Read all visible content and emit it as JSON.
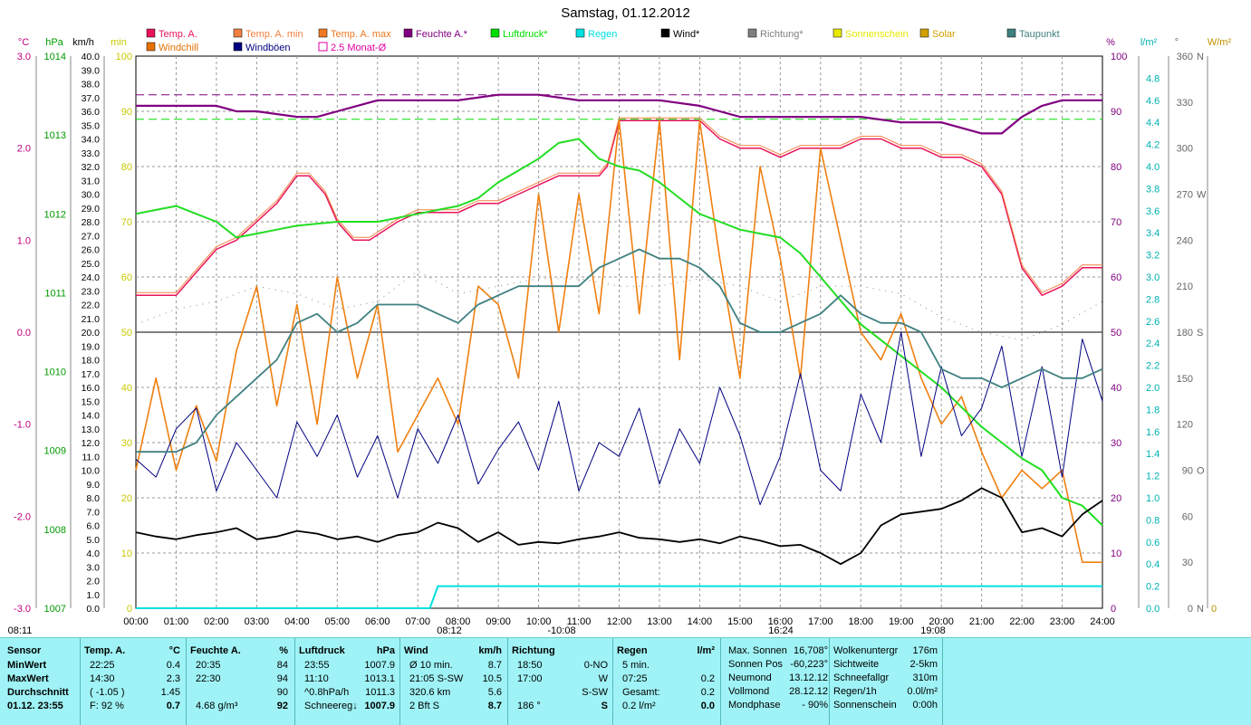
{
  "title": "Samstag, 01.12.2012",
  "legend": [
    {
      "label": "Temp. A.",
      "color": "#e8145a"
    },
    {
      "label": "Temp. A. min",
      "color": "#f08040"
    },
    {
      "label": "Temp. A. max",
      "color": "#f07820"
    },
    {
      "label": "Feuchte A.*",
      "color": "#800080"
    },
    {
      "label": "Luftdruck*",
      "color": "#00dd00"
    },
    {
      "label": "Regen",
      "color": "#00e0e0"
    },
    {
      "label": "Wind*",
      "color": "#000000"
    },
    {
      "label": "Richtung*",
      "color": "#808080"
    },
    {
      "label": "Sonnenschein",
      "color": "#e8e800"
    },
    {
      "label": "Solar",
      "color": "#d0a000"
    },
    {
      "label": "Taupunkt",
      "color": "#408080"
    },
    {
      "label": "Windchill",
      "color": "#e87000"
    },
    {
      "label": "Windböen",
      "color": "#000080"
    },
    {
      "label": "2.5 Monat-Ø",
      "color": "#e000a0"
    }
  ],
  "axes": {
    "temp_unit": "°C",
    "hpa_unit": "hPa",
    "kmh_unit": "km/h",
    "min_unit": "min",
    "pct_unit": "%",
    "lm2_unit": "l/m²",
    "deg_unit": "°",
    "wm2_unit": "W/m²",
    "temp_ticks": [
      "3.0",
      "2.0",
      "1.0",
      "0.0",
      "-1.0",
      "-2.0",
      "-3.0"
    ],
    "hpa_ticks": [
      "1014",
      "1013",
      "1012",
      "1011",
      "1010",
      "1009",
      "1008",
      "1007"
    ],
    "kmh_ticks": [
      "40.0",
      "39.0",
      "38.0",
      "37.0",
      "36.0",
      "35.0",
      "34.0",
      "33.0",
      "32.0",
      "31.0",
      "30.0",
      "29.0",
      "28.0",
      "27.0",
      "26.0",
      "25.0",
      "24.0",
      "23.0",
      "22.0",
      "21.0",
      "20.0",
      "19.0",
      "18.0",
      "17.0",
      "16.0",
      "15.0",
      "14.0",
      "13.0",
      "12.0",
      "11.0",
      "10.0",
      "9.0",
      "8.0",
      "7.0",
      "6.0",
      "5.0",
      "4.0",
      "3.0",
      "2.0",
      "1.0",
      "0.0"
    ],
    "min_ticks": [
      "100",
      "90",
      "80",
      "70",
      "60",
      "50",
      "40",
      "30",
      "20",
      "10",
      "0"
    ],
    "pct_ticks": [
      "100",
      "90",
      "80",
      "70",
      "60",
      "50",
      "40",
      "30",
      "20",
      "10",
      "0"
    ],
    "lm2_ticks": [
      "4.8",
      "4.6",
      "4.4",
      "4.2",
      "4.0",
      "3.8",
      "3.6",
      "3.4",
      "3.2",
      "3.0",
      "2.8",
      "2.6",
      "2.4",
      "2.2",
      "2.0",
      "1.8",
      "1.6",
      "1.4",
      "1.2",
      "1.0",
      "0.8",
      "0.6",
      "0.4",
      "0.2",
      "0.0"
    ],
    "deg_ticks": [
      "360",
      "330",
      "300",
      "270",
      "240",
      "210",
      "180",
      "150",
      "120",
      "90",
      "60",
      "30",
      "0"
    ],
    "dir_labels": {
      "360": "N",
      "270": "W",
      "180": "S",
      "90": "O",
      "0": "N"
    },
    "w_zero": "0",
    "hours": [
      "00:00",
      "01:00",
      "02:00",
      "03:00",
      "04:00",
      "05:00",
      "06:00",
      "07:00",
      "08:00",
      "09:00",
      "10:00",
      "11:00",
      "12:00",
      "13:00",
      "14:00",
      "15:00",
      "16:00",
      "17:00",
      "18:00",
      "19:00",
      "20:00",
      "21:00",
      "22:00",
      "23:00",
      "24:00"
    ],
    "sun_events": [
      "08:11",
      "08:12",
      "-10:08",
      "16:24",
      "19:08"
    ]
  },
  "chart_data": {
    "type": "line",
    "x_label": "",
    "xlim": [
      0,
      24
    ],
    "reference_lines": {
      "humidity_avg_pct": 93,
      "pressure_avg_hpa": 1013.2,
      "zero_temp": 0.0
    },
    "series": [
      {
        "name": "Temp. A.",
        "unit": "°C",
        "x": [
          0,
          1,
          1.2,
          2,
          2.5,
          3,
          3.5,
          4,
          4.3,
          4.7,
          5,
          5.4,
          5.8,
          6.5,
          7,
          7.5,
          8,
          8.5,
          9,
          9.5,
          10,
          10.5,
          11,
          11.5,
          11.7,
          12,
          12.5,
          13,
          13.5,
          14,
          14.5,
          15,
          15.5,
          16,
          16.5,
          17,
          17.5,
          18,
          18.5,
          19,
          19.5,
          20,
          20.5,
          21,
          21.5,
          22,
          22.5,
          23,
          23.5,
          24
        ],
        "y": [
          0.4,
          0.4,
          0.5,
          0.9,
          1.0,
          1.2,
          1.4,
          1.7,
          1.7,
          1.5,
          1.2,
          1.0,
          1.0,
          1.2,
          1.3,
          1.3,
          1.3,
          1.4,
          1.4,
          1.5,
          1.6,
          1.7,
          1.7,
          1.7,
          1.8,
          2.3,
          2.3,
          2.3,
          2.3,
          2.3,
          2.1,
          2.0,
          2.0,
          1.9,
          2.0,
          2.0,
          2.0,
          2.1,
          2.1,
          2.0,
          2.0,
          1.9,
          1.9,
          1.8,
          1.5,
          0.7,
          0.4,
          0.5,
          0.7,
          0.7
        ]
      },
      {
        "name": "Windchill",
        "unit": "°C",
        "x": [
          0,
          0.5,
          1,
          1.5,
          2,
          2.5,
          3,
          3.5,
          4,
          4.5,
          5,
          5.5,
          6,
          6.5,
          7,
          7.5,
          8,
          8.5,
          9,
          9.5,
          10,
          10.5,
          11,
          11.5,
          12,
          12.5,
          13,
          13.5,
          14,
          14.5,
          15,
          15.5,
          16,
          16.5,
          17,
          17.5,
          18,
          18.5,
          19,
          19.5,
          20,
          20.5,
          21,
          21.5,
          22,
          22.5,
          23,
          23.5,
          24
        ],
        "y": [
          -1.5,
          -0.5,
          -1.5,
          -0.8,
          -1.4,
          -0.2,
          0.5,
          -0.8,
          0.3,
          -1.0,
          0.6,
          -0.5,
          0.3,
          -1.3,
          -0.9,
          -0.5,
          -1.0,
          0.5,
          0.3,
          -0.5,
          1.5,
          0.0,
          1.5,
          0.2,
          2.3,
          0.2,
          2.3,
          -0.3,
          2.3,
          0.8,
          -0.5,
          1.8,
          0.8,
          -0.5,
          2.0,
          1.0,
          0.0,
          -0.3,
          0.2,
          -0.5,
          -1.0,
          -0.7,
          -1.3,
          -1.8,
          -1.5,
          -1.7,
          -1.5,
          -2.5,
          -2.5
        ]
      },
      {
        "name": "Feuchte A.*",
        "unit": "%",
        "x": [
          0,
          1,
          2,
          2.5,
          3,
          4,
          4.5,
          5,
          5.5,
          6,
          6.5,
          7,
          7.5,
          8,
          9,
          9.5,
          10,
          11,
          12,
          13,
          14,
          14.5,
          15,
          16,
          17,
          18,
          19,
          20,
          20.5,
          21,
          21.5,
          22,
          22.5,
          23,
          23.5,
          24
        ],
        "y": [
          91,
          91,
          91,
          90,
          90,
          89,
          89,
          90,
          91,
          92,
          92,
          92,
          92,
          92,
          93,
          93,
          93,
          92,
          92,
          92,
          91,
          90,
          89,
          89,
          89,
          89,
          88,
          88,
          87,
          86,
          86,
          89,
          91,
          92,
          92,
          92
        ]
      },
      {
        "name": "Luftdruck*",
        "unit": "hPa",
        "x": [
          0,
          0.5,
          1,
          1.5,
          2,
          2.5,
          3,
          3.5,
          4,
          5,
          6,
          7,
          7.5,
          8,
          8.5,
          9,
          9.5,
          10,
          10.5,
          11,
          11.5,
          12,
          12.5,
          13,
          13.5,
          14,
          14.5,
          15,
          15.5,
          16,
          16.5,
          17,
          17.5,
          18,
          18.5,
          19,
          19.5,
          20,
          20.5,
          21,
          21.5,
          22,
          22.5,
          23,
          23.5,
          24
        ],
        "y": [
          1012.0,
          1012.05,
          1012.1,
          1012.0,
          1011.9,
          1011.7,
          1011.75,
          1011.8,
          1011.85,
          1011.9,
          1011.9,
          1012.0,
          1012.05,
          1012.1,
          1012.2,
          1012.4,
          1012.55,
          1012.7,
          1012.9,
          1012.95,
          1012.7,
          1012.6,
          1012.55,
          1012.4,
          1012.2,
          1012.0,
          1011.9,
          1011.8,
          1011.75,
          1011.7,
          1011.5,
          1011.2,
          1010.9,
          1010.6,
          1010.4,
          1010.2,
          1010.0,
          1009.8,
          1009.55,
          1009.3,
          1009.1,
          1008.9,
          1008.75,
          1008.4,
          1008.3,
          1008.05
        ]
      },
      {
        "name": "Regen",
        "unit": "l/m²",
        "x": [
          0,
          7.3,
          7.5,
          24
        ],
        "y": [
          0,
          0,
          0.2,
          0.2
        ]
      },
      {
        "name": "Wind*",
        "unit": "km/h",
        "x": [
          0,
          0.5,
          1,
          1.5,
          2,
          2.5,
          3,
          3.5,
          4,
          4.5,
          5,
          5.5,
          6,
          6.5,
          7,
          7.5,
          8,
          8.5,
          9,
          9.5,
          10,
          10.5,
          11,
          11.5,
          12,
          12.5,
          13,
          13.5,
          14,
          14.5,
          15,
          15.5,
          16,
          16.5,
          17,
          17.5,
          18,
          18.5,
          19,
          19.5,
          20,
          20.5,
          21,
          21.5,
          22,
          22.5,
          23,
          23.5,
          24
        ],
        "y": [
          5.5,
          5.2,
          5.0,
          5.3,
          5.5,
          5.8,
          5.0,
          5.2,
          5.6,
          5.4,
          5.0,
          5.2,
          4.8,
          5.3,
          5.5,
          6.2,
          5.8,
          4.8,
          5.5,
          4.6,
          4.8,
          4.7,
          5.0,
          5.2,
          5.5,
          5.1,
          5.0,
          4.8,
          5.0,
          4.7,
          5.2,
          4.9,
          4.5,
          4.6,
          4.0,
          3.2,
          4.0,
          6.0,
          6.8,
          7.0,
          7.2,
          7.8,
          8.7,
          8.0,
          5.5,
          5.8,
          5.2,
          6.8,
          7.8
        ]
      },
      {
        "name": "Windböen",
        "unit": "km/h",
        "x": [
          0,
          0.5,
          1,
          1.5,
          2,
          2.5,
          3,
          3.5,
          4,
          4.5,
          5,
          5.5,
          6,
          6.5,
          7,
          7.5,
          8,
          8.5,
          9,
          9.5,
          10,
          10.5,
          11,
          11.5,
          12,
          12.5,
          13,
          13.5,
          14,
          14.5,
          15,
          15.5,
          16,
          16.5,
          17,
          17.5,
          18,
          18.5,
          19,
          19.5,
          20,
          20.5,
          21,
          21.5,
          22,
          22.5,
          23,
          23.5,
          24
        ],
        "y": [
          10.8,
          9.5,
          13.0,
          14.5,
          8.5,
          12.0,
          10.0,
          8.0,
          13.5,
          11.0,
          14.0,
          9.5,
          12.5,
          8.0,
          13.0,
          10.5,
          14.0,
          9.0,
          11.5,
          13.5,
          10.0,
          15.0,
          8.5,
          12.0,
          11.0,
          14.5,
          9.0,
          13.0,
          10.5,
          16.0,
          12.5,
          7.5,
          11.0,
          17.0,
          10.0,
          8.5,
          15.5,
          12.0,
          20.0,
          11.0,
          17.5,
          12.5,
          14.5,
          19.0,
          11.0,
          17.5,
          9.5,
          19.5,
          15.0
        ]
      },
      {
        "name": "Taupunkt",
        "unit": "°C",
        "x": [
          0,
          1,
          1.5,
          2,
          2.5,
          3,
          3.5,
          4,
          4.5,
          5,
          5.5,
          6,
          6.5,
          7,
          7.5,
          8,
          8.5,
          9,
          9.5,
          10,
          10.5,
          11,
          11.5,
          12,
          12.5,
          13,
          13.5,
          14,
          14.5,
          15,
          15.5,
          16,
          16.5,
          17,
          17.5,
          18,
          18.5,
          19,
          19.5,
          20,
          20.5,
          21,
          21.5,
          22,
          22.5,
          23,
          23.5,
          24
        ],
        "y": [
          -1.3,
          -1.3,
          -1.2,
          -0.9,
          -0.7,
          -0.5,
          -0.3,
          0.1,
          0.2,
          0.0,
          0.1,
          0.3,
          0.3,
          0.3,
          0.2,
          0.1,
          0.3,
          0.4,
          0.5,
          0.5,
          0.5,
          0.5,
          0.7,
          0.8,
          0.9,
          0.8,
          0.8,
          0.7,
          0.5,
          0.1,
          0.0,
          0.0,
          0.1,
          0.2,
          0.4,
          0.2,
          0.1,
          0.1,
          0.0,
          -0.4,
          -0.5,
          -0.5,
          -0.6,
          -0.5,
          -0.4,
          -0.5,
          -0.5,
          -0.4
        ]
      },
      {
        "name": "Richtung*",
        "unit": "°",
        "x": [
          0,
          1,
          2,
          3,
          4,
          5,
          6,
          7,
          8,
          9,
          10,
          11,
          12,
          13,
          14,
          15,
          16,
          17,
          18,
          19,
          20,
          21,
          22,
          23,
          24
        ],
        "y": [
          185,
          195,
          200,
          210,
          205,
          195,
          200,
          220,
          205,
          210,
          215,
          215,
          210,
          210,
          215,
          210,
          200,
          210,
          210,
          205,
          190,
          180,
          175,
          185,
          200
        ]
      }
    ]
  },
  "panel": {
    "col_sensor": {
      "header": "Sensor",
      "rows": [
        "MinWert",
        "MaxWert",
        "Durchschnitt",
        "01.12.  23:55"
      ]
    },
    "col_temp": {
      "header": "Temp. A.",
      "unit": "°C",
      "rows": [
        [
          "22:25",
          "0.4"
        ],
        [
          "14:30",
          "2.3"
        ],
        [
          "( -1.05 )",
          "1.45"
        ],
        [
          "F: 92 %",
          "0.7"
        ]
      ]
    },
    "col_feuchte": {
      "header": "Feuchte A.",
      "unit": "%",
      "rows": [
        [
          "20:35",
          "84"
        ],
        [
          "22:30",
          "94"
        ],
        [
          "",
          "90"
        ],
        [
          "4.68 g/m³",
          "92"
        ]
      ]
    },
    "col_druck": {
      "header": "Luftdruck",
      "unit": "hPa",
      "rows": [
        [
          "23:55",
          "1007.9"
        ],
        [
          "11:10",
          "1013.1"
        ],
        [
          "^0.8hPa/h",
          "1011.3"
        ],
        [
          "Schneereg↓",
          "1007.9"
        ]
      ]
    },
    "col_wind": {
      "header": "Wind",
      "unit": "km/h",
      "rows": [
        [
          "Ø 10 min.",
          "8.7"
        ],
        [
          "21:05   S-SW",
          "10.5"
        ],
        [
          "320.6 km",
          "5.6"
        ],
        [
          "2 Bft S",
          "8.7"
        ]
      ]
    },
    "col_richtung": {
      "header": "Richtung",
      "rows": [
        [
          "18:50",
          "0-NO"
        ],
        [
          "17:00",
          "W"
        ],
        [
          "",
          "S-SW"
        ],
        [
          "186 °",
          "S"
        ]
      ]
    },
    "col_regen": {
      "header": "Regen",
      "unit": "l/m²",
      "rows": [
        [
          "5 min.",
          ""
        ],
        [
          "07:25",
          "0.2"
        ],
        [
          "Gesamt:",
          "0.2"
        ],
        [
          "0.2 l/m²",
          "0.0"
        ]
      ]
    },
    "col_sonne": {
      "rows": [
        [
          "Max. Sonnen",
          "16,708°"
        ],
        [
          "Sonnen Pos",
          "-60,223°"
        ],
        [
          "Neumond",
          "13.12.12"
        ],
        [
          "Vollmond",
          "28.12.12"
        ],
        [
          "Mondphase",
          "- 90%"
        ]
      ]
    },
    "col_wolke": {
      "rows": [
        [
          "Wolkenuntergr",
          "176m"
        ],
        [
          "Sichtweite",
          "2-5km"
        ],
        [
          "Schneefallgr",
          "310m"
        ],
        [
          "Regen/1h",
          "0.0l/m²"
        ],
        [
          "Sonnenschein",
          "0:00h"
        ]
      ]
    }
  }
}
